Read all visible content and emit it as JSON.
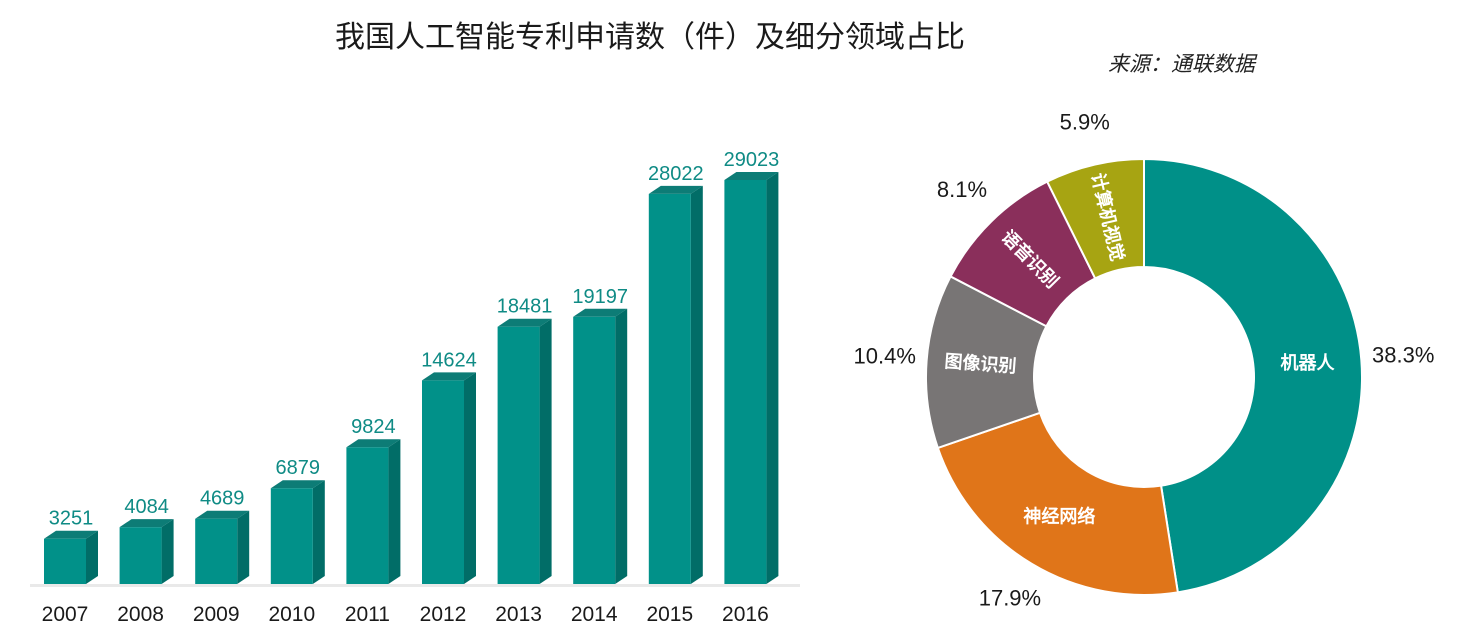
{
  "title": "我国人工智能专利申请数（件）及细分领域占比",
  "source": "来源：通联数据",
  "colors": {
    "bar_front": "#019189",
    "bar_side": "#016d67",
    "bar_top": "#0d7c76",
    "label": "#0f8b85"
  },
  "chart_data": [
    {
      "type": "bar",
      "categories": [
        "2007",
        "2008",
        "2009",
        "2010",
        "2011",
        "2012",
        "2013",
        "2014",
        "2015",
        "2016"
      ],
      "values": [
        3251,
        4084,
        4689,
        6879,
        9824,
        14624,
        18481,
        19197,
        28022,
        29023
      ],
      "value_labels": [
        "3251",
        "4084",
        "4689",
        "6879",
        "9824",
        "14624",
        "18481",
        "19197",
        "28022",
        "29023"
      ],
      "ylim": [
        0,
        29023
      ],
      "grid": false,
      "style": "3d"
    },
    {
      "type": "pie",
      "donut": true,
      "slices": [
        {
          "label": "机器人",
          "value": 38.3,
          "pct": "38.3%",
          "color": "#009088"
        },
        {
          "label": "神经网络",
          "value": 17.9,
          "pct": "17.9%",
          "color": "#e07519"
        },
        {
          "label": "图像识别",
          "value": 10.4,
          "pct": "10.4%",
          "color": "#787575"
        },
        {
          "label": "语音识别",
          "value": 8.1,
          "pct": "8.1%",
          "color": "#8a2f5b"
        },
        {
          "label": "计算机视觉",
          "value": 5.9,
          "pct": "5.9%",
          "color": "#a7a412"
        }
      ]
    }
  ]
}
